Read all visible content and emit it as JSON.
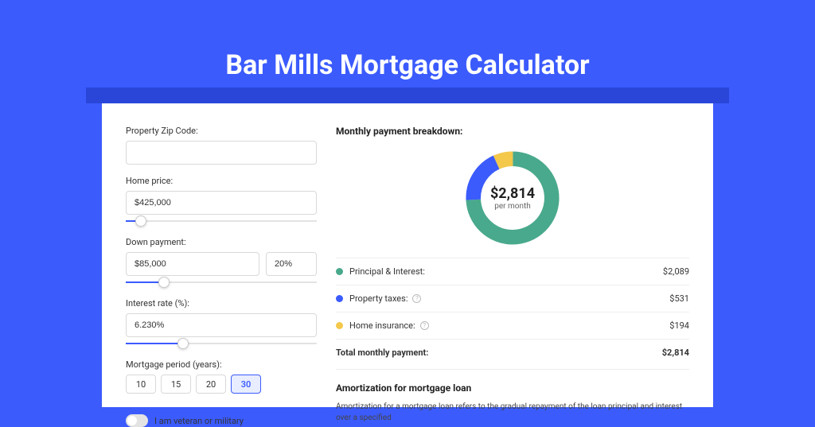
{
  "page": {
    "title": "Bar Mills Mortgage Calculator",
    "background_color": "#3b5bfd",
    "banner_color": "#2a46d9",
    "card_color": "#ffffff"
  },
  "form": {
    "zip": {
      "label": "Property Zip Code:",
      "value": ""
    },
    "home_price": {
      "label": "Home price:",
      "value": "$425,000",
      "slider_pct": 8
    },
    "down_payment": {
      "label": "Down payment:",
      "amount": "$85,000",
      "percent": "20%",
      "slider_pct": 20
    },
    "interest_rate": {
      "label": "Interest rate (%):",
      "value": "6.230%",
      "slider_pct": 30
    },
    "period": {
      "label": "Mortgage period (years):",
      "options": [
        "10",
        "15",
        "20",
        "30"
      ],
      "active": "30"
    },
    "veteran": {
      "label": "I am veteran or military",
      "value": false
    }
  },
  "breakdown": {
    "title": "Monthly payment breakdown:",
    "donut": {
      "amount": "$2,814",
      "sub": "per month",
      "segments": [
        {
          "name": "principal_interest",
          "color": "#49a98c",
          "pct": 74.2
        },
        {
          "name": "property_taxes",
          "color": "#3b5bfd",
          "pct": 18.9
        },
        {
          "name": "home_insurance",
          "color": "#f3c84b",
          "pct": 6.9
        }
      ]
    },
    "rows": [
      {
        "label": "Principal & Interest:",
        "value": "$2,089",
        "color": "#49a98c",
        "help": false
      },
      {
        "label": "Property taxes:",
        "value": "$531",
        "color": "#3b5bfd",
        "help": true
      },
      {
        "label": "Home insurance:",
        "value": "$194",
        "color": "#f3c84b",
        "help": true
      }
    ],
    "total": {
      "label": "Total monthly payment:",
      "value": "$2,814"
    }
  },
  "amortization": {
    "title": "Amortization for mortgage loan",
    "text": "Amortization for a mortgage loan refers to the gradual repayment of the loan principal and interest over a specified"
  }
}
